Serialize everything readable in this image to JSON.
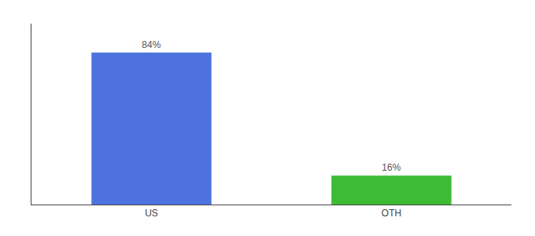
{
  "chart_data": {
    "type": "bar",
    "categories": [
      "US",
      "OTH"
    ],
    "values": [
      84,
      16
    ],
    "value_labels": [
      "84%",
      "16%"
    ],
    "data_labels": true,
    "colors": [
      "#4d72e0",
      "#3dbb35"
    ],
    "ylim": [
      0,
      100
    ],
    "tick_labels": "x",
    "grid": false
  }
}
